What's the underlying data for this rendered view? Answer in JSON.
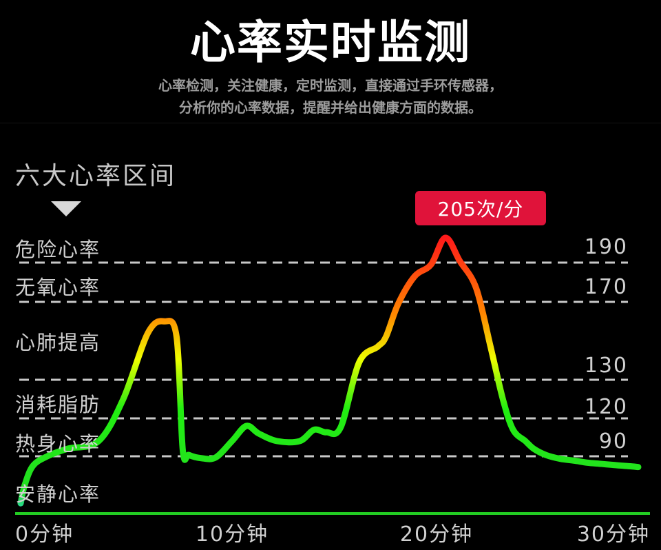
{
  "header": {
    "title": "心率实时监测",
    "subtitle_line1": "心率检测，关注健康，定时监测，直接通过手环传感器，",
    "subtitle_line2": "分析你的心率数据，提醒并给出健康方面的数据。"
  },
  "chart_data": {
    "type": "line",
    "section_title": "六大心率区间",
    "zones": [
      "危险心率",
      "无氧心率",
      "心肺提高",
      "消耗脂肪",
      "热身心率",
      "安静心率"
    ],
    "threshold_values": [
      190,
      170,
      130,
      120,
      90
    ],
    "x_ticks": [
      0,
      10,
      20,
      30
    ],
    "x_tick_labels": [
      "0分钟",
      "10分钟",
      "20分钟",
      "30分钟"
    ],
    "xlim": [
      0,
      30
    ],
    "peak_label": "205次/分",
    "peak_value": 205,
    "grid": "dashed horizontal lines at threshold values",
    "colors": {
      "low": "#22dd22",
      "mid": "#ffee00",
      "high": "#ff1a1a",
      "badge": "#e0133a",
      "baseline": "#22cc22"
    },
    "series": [
      {
        "x": [
          0,
          0.2,
          0.6,
          1.3,
          2.3,
          3.8,
          5.0,
          6.2,
          7.0,
          7.6,
          7.9,
          8.2,
          8.8,
          9.5,
          10.3,
          11.0,
          11.6,
          12.5,
          13.6,
          14.3,
          14.9,
          15.6,
          16.5,
          17.4,
          17.8,
          18.4,
          19.2,
          20.0,
          20.7,
          21.4,
          22.2,
          22.9,
          23.5,
          24.0,
          24.6,
          25.0,
          25.6,
          26.3,
          27.0,
          27.6,
          28.3,
          29.0,
          29.4,
          29.8,
          30.1
        ],
        "y": [
          16,
          45,
          75,
          90,
          96,
          102,
          125,
          154,
          160,
          152,
          95,
          91,
          87,
          88,
          102,
          114,
          108,
          102,
          102,
          111,
          109,
          113,
          139,
          147,
          152,
          169,
          183,
          189,
          205,
          191,
          177,
          147,
          125,
          111,
          102,
          96,
          91,
          86,
          83,
          80,
          78,
          76,
          75,
          74,
          73
        ]
      }
    ]
  }
}
